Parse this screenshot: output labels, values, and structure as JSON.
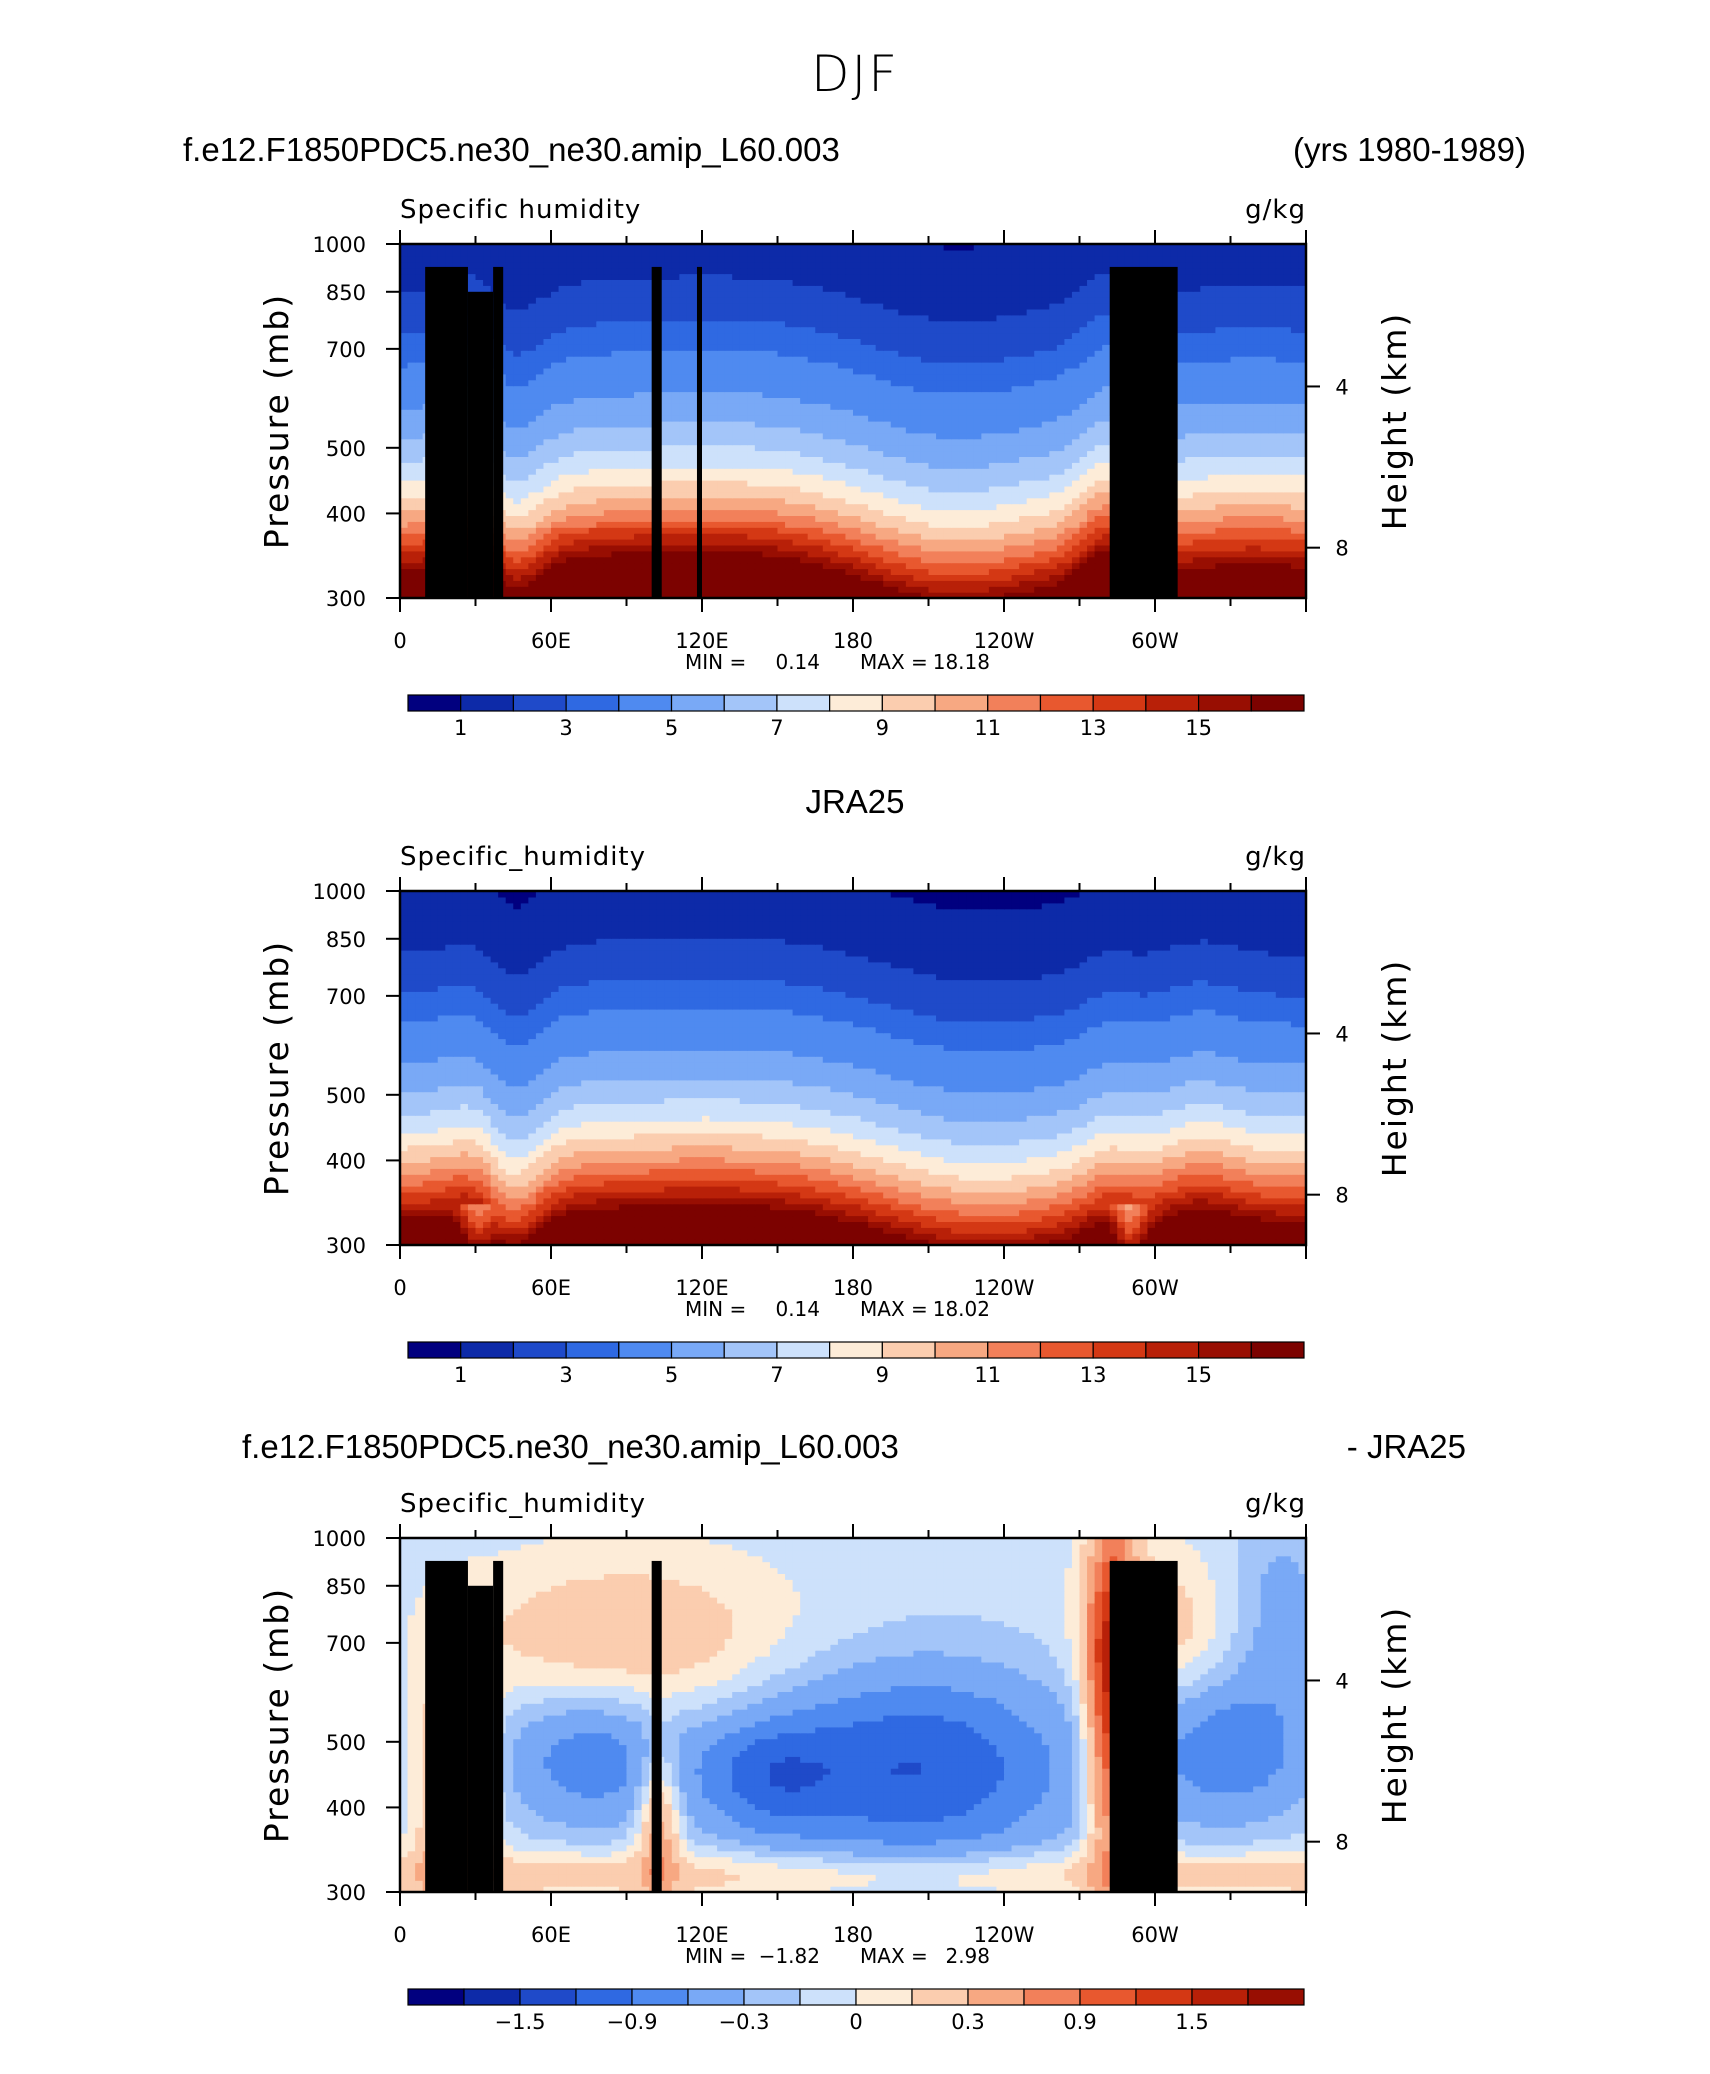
{
  "figure": {
    "title": "DJF"
  },
  "panels": [
    {
      "id": "model",
      "header_left": "f.e12.F1850PDC5.ne30_ne30.amip_L60.003",
      "header_right": "(yrs 1980-1989)",
      "var_label": "Specific  humidity",
      "units": "g/kg",
      "min_label": "MIN =",
      "min_value": "0.14",
      "max_label": "MAX =",
      "max_value": "18.18"
    },
    {
      "id": "obs",
      "header_center": "JRA25",
      "var_label": "Specific_humidity",
      "units": "g/kg",
      "min_label": "MIN =",
      "min_value": "0.14",
      "max_label": "MAX =",
      "max_value": "18.02"
    },
    {
      "id": "diff",
      "header_left": "f.e12.F1850PDC5.ne30_ne30.amip_L60.003",
      "header_right": "- JRA25",
      "var_label": "Specific_humidity",
      "units": "g/kg",
      "min_label": "MIN =",
      "min_value": "−1.82",
      "max_label": "MAX =",
      "max_value": "2.98"
    }
  ],
  "chart_data": [
    {
      "type": "heatmap",
      "title": "f.e12.F1850PDC5.ne30_ne30.amip_L60.003",
      "subtitle": "Specific  humidity",
      "units": "g/kg",
      "xlabel": "",
      "ylabel": "Pressure (mb)",
      "ylabel_right": "Height (km)",
      "x_ticks": [
        "0",
        "60E",
        "120E",
        "180",
        "120W",
        "60W"
      ],
      "y_ticks": [
        300,
        400,
        500,
        700,
        850,
        1000
      ],
      "y_ticks_right": [
        4,
        8
      ],
      "y_scale": "log",
      "ylim": [
        1000,
        300
      ],
      "colorbar_labels": [
        "1",
        "3",
        "5",
        "7",
        "9",
        "11",
        "13",
        "15"
      ],
      "levels": [
        0.5,
        1,
        1.5,
        2,
        3,
        4,
        5,
        6,
        7,
        8,
        9,
        10,
        11,
        12,
        13,
        14,
        15,
        16
      ],
      "min": 0.14,
      "max": 18.18,
      "colors": [
        "#01007f",
        "#0d2aa8",
        "#1f4ac9",
        "#2f69e2",
        "#4f8af0",
        "#79a9f6",
        "#a3c5f9",
        "#cde1fb",
        "#fdecd8",
        "#fbcdaf",
        "#f7a882",
        "#f2805a",
        "#e8582f",
        "#d43814",
        "#b82008",
        "#980e02",
        "#7c0200"
      ]
    },
    {
      "type": "heatmap",
      "title": "JRA25",
      "subtitle": "Specific_humidity",
      "units": "g/kg",
      "ylabel": "Pressure (mb)",
      "ylabel_right": "Height (km)",
      "x_ticks": [
        "0",
        "60E",
        "120E",
        "180",
        "120W",
        "60W"
      ],
      "y_ticks": [
        300,
        400,
        500,
        700,
        850,
        1000
      ],
      "y_ticks_right": [
        4,
        8
      ],
      "y_scale": "log",
      "ylim": [
        1000,
        300
      ],
      "colorbar_labels": [
        "1",
        "3",
        "5",
        "7",
        "9",
        "11",
        "13",
        "15"
      ],
      "min": 0.14,
      "max": 18.02
    },
    {
      "type": "heatmap",
      "title": "f.e12.F1850PDC5.ne30_ne30.amip_L60.003 - JRA25",
      "subtitle": "Specific_humidity",
      "units": "g/kg",
      "ylabel": "Pressure (mb)",
      "ylabel_right": "Height (km)",
      "x_ticks": [
        "0",
        "60E",
        "120E",
        "180",
        "120W",
        "60W"
      ],
      "y_ticks": [
        300,
        400,
        500,
        700,
        850,
        1000
      ],
      "y_ticks_right": [
        4,
        8
      ],
      "y_scale": "log",
      "ylim": [
        1000,
        300
      ],
      "colorbar_labels": [
        "−1.5",
        "−0.9",
        "−0.3",
        "0",
        "0.3",
        "0.9",
        "1.5"
      ],
      "min": -1.82,
      "max": 2.98,
      "colors": [
        "#01007f",
        "#0d2aa8",
        "#1f4ac9",
        "#2f69e2",
        "#4f8af0",
        "#79a9f6",
        "#a3c5f9",
        "#cde1fb",
        "#fdecd8",
        "#fbcdaf",
        "#f7a882",
        "#f2805a",
        "#e8582f",
        "#d43814",
        "#b82008",
        "#980e02"
      ]
    }
  ]
}
